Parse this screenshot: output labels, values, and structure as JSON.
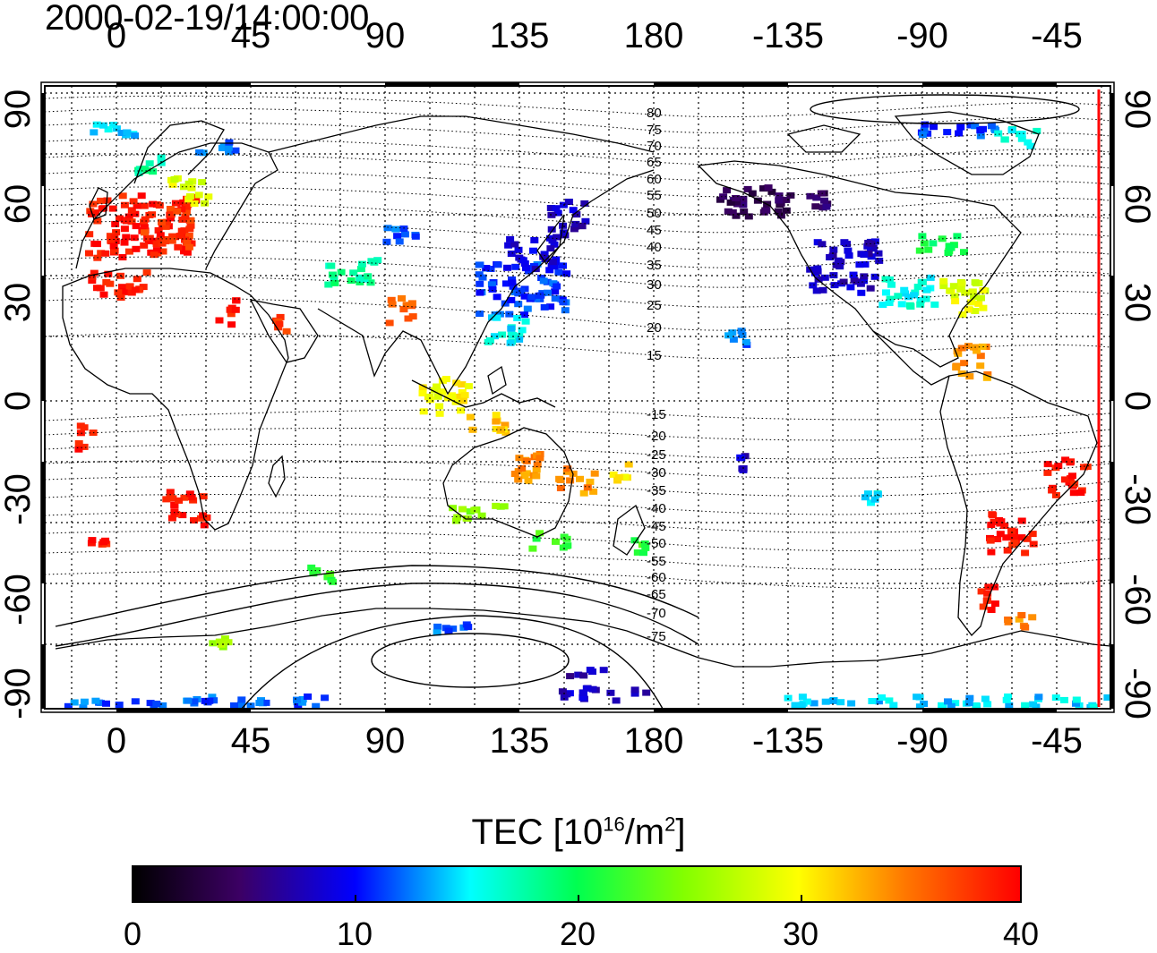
{
  "title": "2000-02-19/14:00:00",
  "x_ticks": [
    "0",
    "45",
    "90",
    "135",
    "180",
    "-135",
    "-90",
    "-45"
  ],
  "y_ticks": [
    "90",
    "60",
    "30",
    "0",
    "-30",
    "-60",
    "-90"
  ],
  "contour_labels_north": [
    "80",
    "75",
    "70",
    "65",
    "60",
    "55",
    "50",
    "45",
    "40",
    "35",
    "30",
    "25",
    "20",
    "15"
  ],
  "contour_labels_south": [
    "-15",
    "-20",
    "-25",
    "-30",
    "-35",
    "-40",
    "-45",
    "-50",
    "-55",
    "-60",
    "-65",
    "-70",
    "-75"
  ],
  "colorbar": {
    "label_main": "TEC  [10",
    "label_sup1": "16",
    "label_mid": "/m",
    "label_sup2": "2",
    "label_end": "]",
    "ticks": [
      "0",
      "10",
      "20",
      "30",
      "40"
    ],
    "min": 0,
    "max": 40,
    "colormap": "rainbow"
  },
  "colors": {
    "terminator": "#ff0000",
    "coast": "#000000",
    "grid": "#000000"
  }
}
